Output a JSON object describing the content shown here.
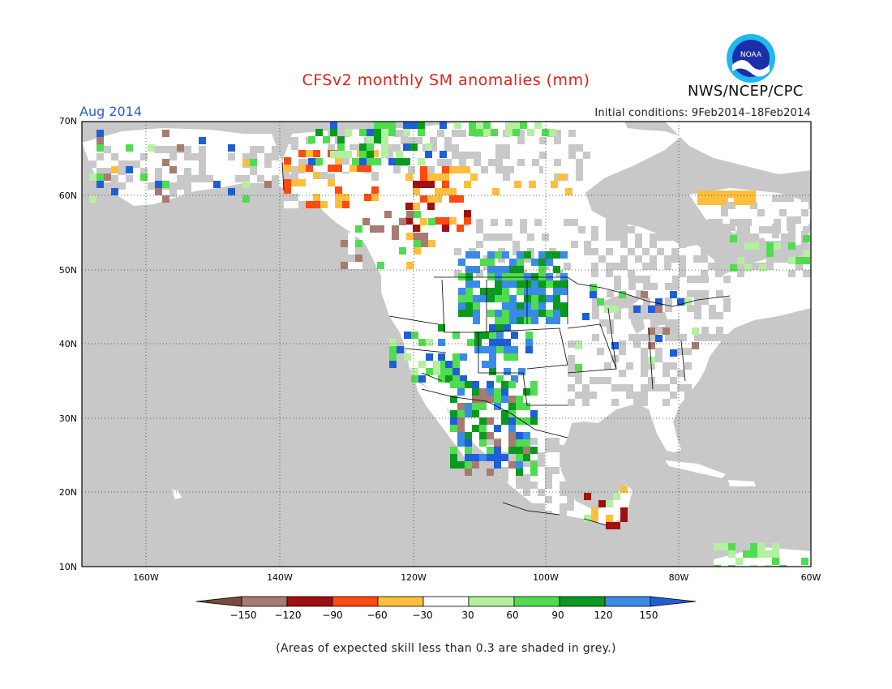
{
  "header": {
    "title": "CFSv2 monthly SM anomalies (mm)",
    "org": "NWS/NCEP/CPC",
    "period": "Aug 2014",
    "initial_conditions": "Initial conditions: 9Feb2014–18Feb2014"
  },
  "logo": {
    "icon": "noaa-logo-icon",
    "text": "NOAA"
  },
  "map": {
    "lat_labels": [
      "70N",
      "60N",
      "50N",
      "40N",
      "30N",
      "20N",
      "10N"
    ],
    "lon_labels": [
      "160W",
      "140W",
      "120W",
      "100W",
      "80W",
      "60W"
    ],
    "land_color": "#ffffff",
    "low_skill_color": "#c8c8c8"
  },
  "colorbar": {
    "labels": [
      "−150",
      "−120",
      "−90",
      "−60",
      "−30",
      "30",
      "60",
      "90",
      "120",
      "150"
    ],
    "colors": [
      "#7a4a3a",
      "#a87a70",
      "#a01010",
      "#ff4a10",
      "#ffbe3c",
      "#ffffff",
      "#b4f0a0",
      "#50dc50",
      "#0a9a20",
      "#3a8ae8",
      "#1e5fd8"
    ]
  },
  "footer": {
    "note": "(Areas of expected skill less than 0.3 are shaded in grey.)"
  }
}
